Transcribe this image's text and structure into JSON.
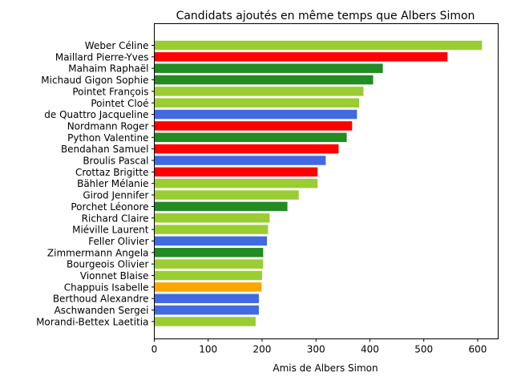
{
  "chart_data": {
    "type": "bar",
    "orientation": "horizontal",
    "title": "Candidats ajoutés en même temps que Albers Simon",
    "xlabel": "Amis de Albers Simon",
    "ylabel": "",
    "xlim": [
      0,
      638
    ],
    "xticks": [
      0,
      100,
      200,
      300,
      400,
      500,
      600
    ],
    "grid": false,
    "categories": [
      "Weber Céline",
      "Maillard Pierre-Yves",
      "Mahaim Raphaël",
      "Michaud Gigon Sophie",
      "Pointet François",
      "Pointet Cloé",
      "de Quattro Jacqueline",
      "Nordmann Roger",
      "Python Valentine",
      "Bendahan Samuel",
      "Broulis Pascal",
      "Crottaz Brigitte",
      "Bähler Mélanie",
      "Girod Jennifer",
      "Porchet Léonore",
      "Richard Claire",
      "Miéville Laurent",
      "Feller Olivier",
      "Zimmermann Angela",
      "Bourgeois Olivier",
      "Vionnet Blaise",
      "Chappuis Isabelle",
      "Berthoud Alexandre",
      "Aschwanden Sergei",
      "Morandi-Bettex Laetitia"
    ],
    "values": [
      608,
      544,
      424,
      406,
      388,
      380,
      376,
      367,
      357,
      342,
      318,
      303,
      303,
      268,
      247,
      214,
      211,
      209,
      202,
      202,
      200,
      199,
      194,
      194,
      188
    ],
    "colors": [
      "#9acd32",
      "#ff0000",
      "#228b22",
      "#228b22",
      "#9acd32",
      "#9acd32",
      "#4169e1",
      "#ff0000",
      "#228b22",
      "#ff0000",
      "#4169e1",
      "#ff0000",
      "#9acd32",
      "#9acd32",
      "#228b22",
      "#9acd32",
      "#9acd32",
      "#4169e1",
      "#228b22",
      "#9acd32",
      "#9acd32",
      "#ffa500",
      "#4169e1",
      "#4169e1",
      "#9acd32"
    ]
  }
}
